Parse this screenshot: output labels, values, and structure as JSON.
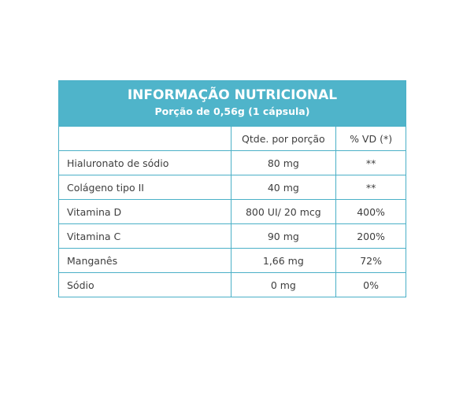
{
  "header": {
    "title": "INFORMAÇÃO NUTRICIONAL",
    "subtitle": "Porção de 0,56g (1 cápsula)"
  },
  "table": {
    "columns": [
      "Qtde. por porção",
      "% VD (*)"
    ],
    "rows": [
      [
        "Hialuronato de sódio",
        "80 mg",
        "**"
      ],
      [
        "Colágeno tipo II",
        "40 mg",
        "**"
      ],
      [
        "Vitamina D",
        "800 UI/ 20 mcg",
        "400%"
      ],
      [
        "Vitamina C",
        "90 mg",
        "200%"
      ],
      [
        "Manganês",
        "1,66 mg",
        "72%"
      ],
      [
        "Sódio",
        "0 mg",
        "0%"
      ]
    ]
  }
}
